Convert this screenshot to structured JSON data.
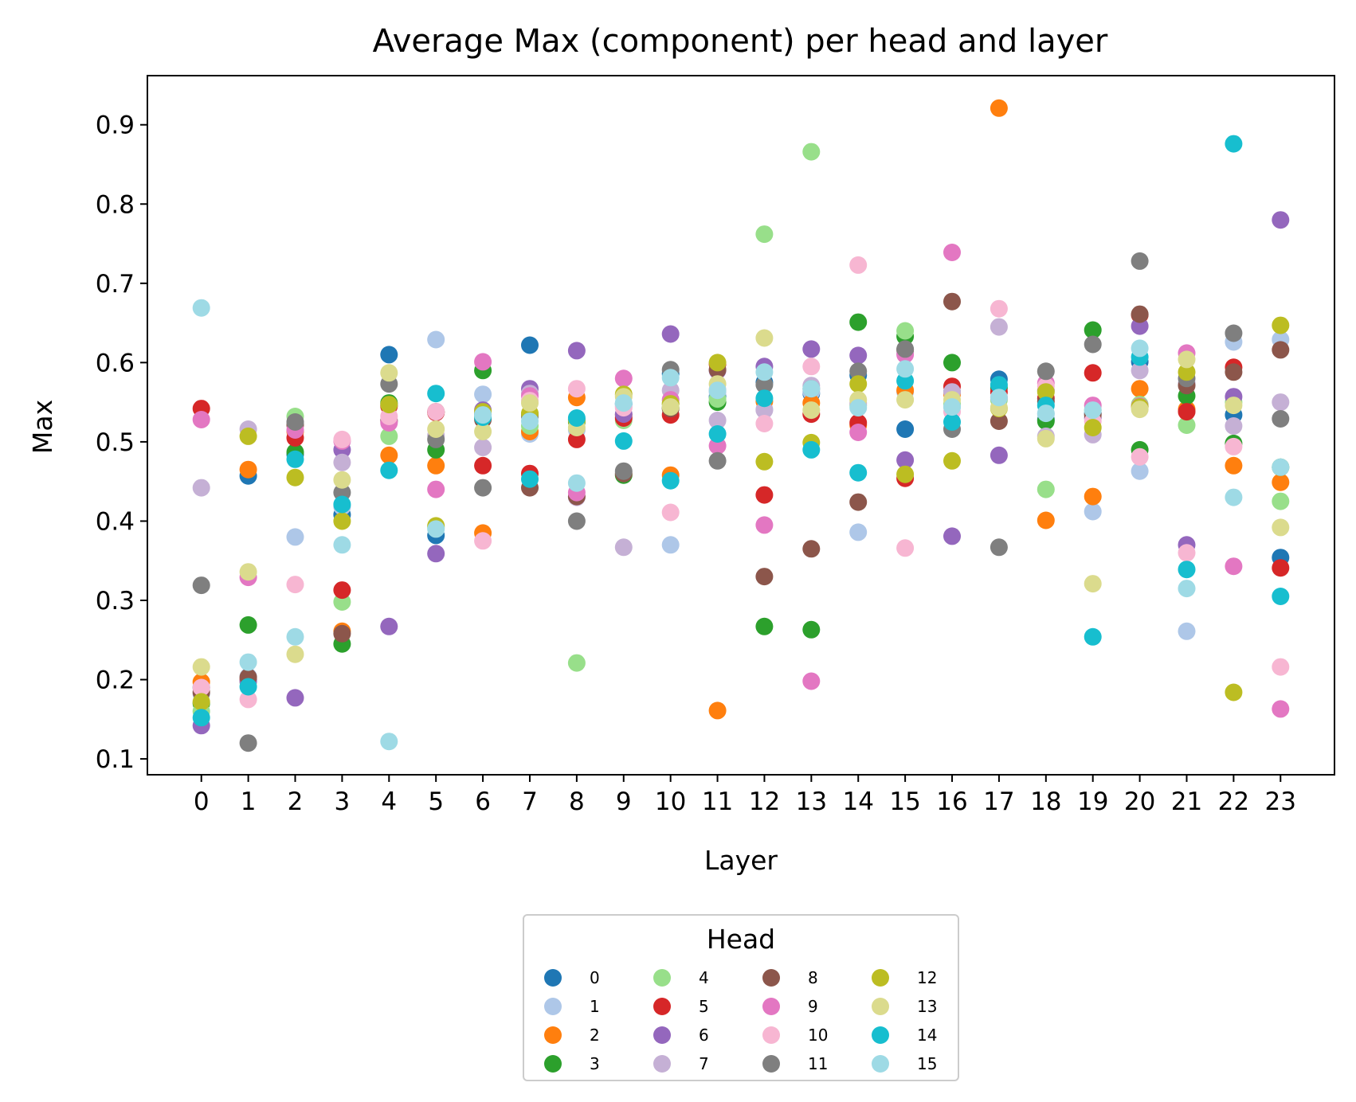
{
  "chart_data": {
    "type": "scatter",
    "title": "Average Max (component) per head and layer",
    "xlabel": "Layer",
    "ylabel": "Max",
    "xlim": [
      -1.15,
      24.15
    ],
    "ylim": [
      0.08,
      0.962
    ],
    "x_ticks": [
      0,
      1,
      2,
      3,
      4,
      5,
      6,
      7,
      8,
      9,
      10,
      11,
      12,
      13,
      14,
      15,
      16,
      17,
      18,
      19,
      20,
      21,
      22,
      23
    ],
    "y_ticks": [
      0.1,
      0.2,
      0.3,
      0.4,
      0.5,
      0.6,
      0.7,
      0.8,
      0.9
    ],
    "y_tick_labels": [
      "0.1",
      "0.2",
      "0.3",
      "0.4",
      "0.5",
      "0.6",
      "0.7",
      "0.8",
      "0.9"
    ],
    "grid": false,
    "legend": {
      "title": "Head",
      "placement": "bottom-center-outside",
      "columns": 4
    },
    "x": [
      0,
      1,
      2,
      3,
      4,
      5,
      6,
      7,
      8,
      9,
      10,
      11,
      12,
      13,
      14,
      15,
      16,
      17,
      18,
      19,
      20,
      21,
      22,
      23
    ],
    "series": [
      {
        "name": "0",
        "color": "#1f77b4",
        "values": [
          0.19,
          0.457,
          0.484,
          0.408,
          0.61,
          0.382,
          0.535,
          0.622,
          0.528,
          0.548,
          0.586,
          0.557,
          0.575,
          0.561,
          0.584,
          0.516,
          0.563,
          0.579,
          0.528,
          0.536,
          0.601,
          0.573,
          0.534,
          0.354
        ]
      },
      {
        "name": "1",
        "color": "#aec7e8",
        "values": [
          0.182,
          0.204,
          0.38,
          0.418,
          0.546,
          0.629,
          0.56,
          0.51,
          0.515,
          0.545,
          0.37,
          0.563,
          0.541,
          0.563,
          0.386,
          0.563,
          0.544,
          0.571,
          0.535,
          0.412,
          0.463,
          0.261,
          0.626,
          0.629
        ]
      },
      {
        "name": "2",
        "color": "#ff7f0e",
        "values": [
          0.197,
          0.465,
          0.513,
          0.261,
          0.483,
          0.47,
          0.385,
          0.513,
          0.556,
          0.534,
          0.458,
          0.161,
          0.551,
          0.549,
          0.521,
          0.565,
          0.56,
          0.921,
          0.401,
          0.431,
          0.567,
          0.541,
          0.47,
          0.449
        ]
      },
      {
        "name": "3",
        "color": "#2ca02c",
        "values": [
          0.17,
          0.269,
          0.487,
          0.245,
          0.549,
          0.49,
          0.59,
          0.535,
          0.525,
          0.458,
          0.543,
          0.55,
          0.267,
          0.263,
          0.651,
          0.633,
          0.6,
          0.568,
          0.526,
          0.641,
          0.49,
          0.558,
          0.498,
          0.468
        ]
      },
      {
        "name": "4",
        "color": "#98df8a",
        "values": [
          0.16,
          0.197,
          0.532,
          0.298,
          0.507,
          0.392,
          0.531,
          0.52,
          0.221,
          0.527,
          0.548,
          0.554,
          0.762,
          0.866,
          0.546,
          0.64,
          0.548,
          0.553,
          0.44,
          0.54,
          0.547,
          0.521,
          0.55,
          0.425
        ]
      },
      {
        "name": "5",
        "color": "#d62728",
        "values": [
          0.542,
          0.2,
          0.505,
          0.313,
          0.545,
          0.537,
          0.47,
          0.46,
          0.503,
          0.53,
          0.534,
          0.598,
          0.433,
          0.535,
          0.524,
          0.454,
          0.57,
          0.563,
          0.555,
          0.587,
          0.66,
          0.538,
          0.594,
          0.341
        ]
      },
      {
        "name": "6",
        "color": "#9467bd",
        "values": [
          0.142,
          0.198,
          0.177,
          0.49,
          0.267,
          0.359,
          0.54,
          0.567,
          0.615,
          0.535,
          0.636,
          0.59,
          0.595,
          0.617,
          0.609,
          0.477,
          0.381,
          0.483,
          0.565,
          0.53,
          0.646,
          0.37,
          0.557,
          0.78
        ]
      },
      {
        "name": "7",
        "color": "#c5b0d5",
        "values": [
          0.442,
          0.516,
          0.524,
          0.474,
          0.527,
          0.508,
          0.493,
          0.561,
          0.43,
          0.367,
          0.565,
          0.527,
          0.54,
          0.571,
          0.549,
          0.612,
          0.563,
          0.645,
          0.507,
          0.509,
          0.59,
          0.574,
          0.52,
          0.55
        ]
      },
      {
        "name": "8",
        "color": "#8c564b",
        "values": [
          0.184,
          0.203,
          0.521,
          0.258,
          0.526,
          0.538,
          0.528,
          0.442,
          0.431,
          0.46,
          0.542,
          0.591,
          0.33,
          0.365,
          0.424,
          0.616,
          0.677,
          0.526,
          0.551,
          0.534,
          0.661,
          0.571,
          0.588,
          0.616
        ]
      },
      {
        "name": "9",
        "color": "#e377c2",
        "values": [
          0.528,
          0.329,
          0.515,
          0.501,
          0.524,
          0.44,
          0.601,
          0.558,
          0.436,
          0.58,
          0.553,
          0.495,
          0.395,
          0.198,
          0.512,
          0.61,
          0.739,
          0.556,
          0.574,
          0.546,
          0.545,
          0.612,
          0.343,
          0.163
        ]
      },
      {
        "name": "10",
        "color": "#f7b6d2",
        "values": [
          0.19,
          0.175,
          0.32,
          0.503,
          0.532,
          0.538,
          0.375,
          0.552,
          0.567,
          0.543,
          0.411,
          0.566,
          0.523,
          0.595,
          0.723,
          0.366,
          0.538,
          0.668,
          0.57,
          0.526,
          0.481,
          0.36,
          0.494,
          0.216
        ]
      },
      {
        "name": "11",
        "color": "#7f7f7f",
        "values": [
          0.319,
          0.12,
          0.525,
          0.436,
          0.573,
          0.503,
          0.442,
          0.532,
          0.4,
          0.463,
          0.591,
          0.476,
          0.572,
          0.567,
          0.589,
          0.617,
          0.516,
          0.367,
          0.589,
          0.623,
          0.728,
          0.58,
          0.637,
          0.529
        ]
      },
      {
        "name": "12",
        "color": "#bcbd22",
        "values": [
          0.172,
          0.507,
          0.455,
          0.4,
          0.547,
          0.394,
          0.538,
          0.536,
          0.527,
          0.56,
          0.548,
          0.6,
          0.475,
          0.499,
          0.573,
          0.459,
          0.476,
          0.542,
          0.563,
          0.518,
          0.544,
          0.588,
          0.184,
          0.647
        ]
      },
      {
        "name": "13",
        "color": "#dbdb8d",
        "values": [
          0.216,
          0.336,
          0.232,
          0.452,
          0.587,
          0.516,
          0.513,
          0.549,
          0.518,
          0.557,
          0.544,
          0.573,
          0.631,
          0.54,
          0.553,
          0.553,
          0.553,
          0.543,
          0.504,
          0.321,
          0.541,
          0.604,
          0.546,
          0.392
        ]
      },
      {
        "name": "14",
        "color": "#17becf",
        "values": [
          0.152,
          0.191,
          0.478,
          0.421,
          0.464,
          0.561,
          0.531,
          0.453,
          0.53,
          0.501,
          0.451,
          0.51,
          0.555,
          0.49,
          0.461,
          0.577,
          0.525,
          0.572,
          0.546,
          0.254,
          0.607,
          0.339,
          0.876,
          0.305
        ]
      },
      {
        "name": "15",
        "color": "#9edae5",
        "values": [
          0.669,
          0.222,
          0.254,
          0.37,
          0.122,
          0.39,
          0.534,
          0.526,
          0.448,
          0.549,
          0.581,
          0.565,
          0.588,
          0.567,
          0.543,
          0.592,
          0.544,
          0.556,
          0.536,
          0.54,
          0.618,
          0.315,
          0.43,
          0.468
        ]
      }
    ]
  }
}
